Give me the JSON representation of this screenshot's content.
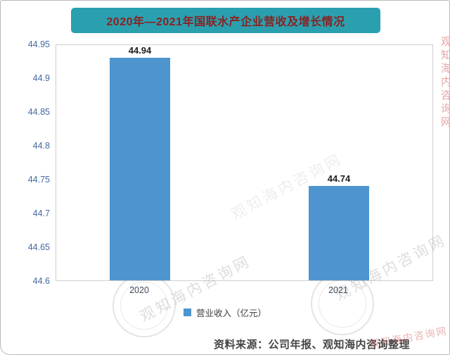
{
  "title": "2020年—2021年国联水产企业营收及增长情况",
  "chart_data": {
    "type": "bar",
    "title": "2020年—2021年国联水产企业营收及增长情况",
    "categories": [
      "2020",
      "2021"
    ],
    "values": [
      44.94,
      44.74
    ],
    "series_name": "营业收入（亿元）",
    "xlabel": "",
    "ylabel": "",
    "ylim": [
      44.6,
      44.95
    ],
    "yticks": [
      "44.95",
      "44.9",
      "44.85",
      "44.8",
      "44.75",
      "44.7",
      "44.65",
      "44.6"
    ],
    "grid": false,
    "legend_position": "bottom"
  },
  "legend": {
    "label": "营业收入（亿元）"
  },
  "source_line": "资料来源：公司年报、观知海内咨询整理",
  "watermark": "观知海内咨询网",
  "colors": {
    "bar": "#4e95d0",
    "title_bg": "#2aa0af",
    "title_text": "#8b2121"
  }
}
